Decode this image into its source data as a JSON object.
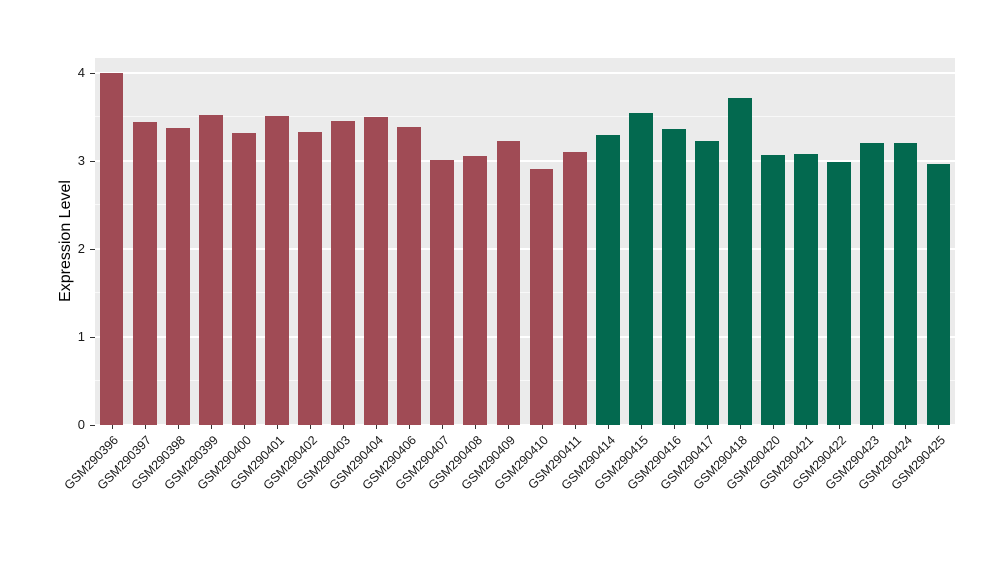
{
  "chart_data": {
    "type": "bar",
    "title": "",
    "xlabel": "",
    "ylabel": "Expression Level",
    "ylim": [
      0,
      4.17
    ],
    "yticks": [
      0,
      1,
      2,
      3,
      4
    ],
    "minor_ticks": [
      0.5,
      1.5,
      2.5,
      3.5
    ],
    "grid": true,
    "legend_position": "none",
    "plot_background": "#EBEBEB",
    "grid_color": "#FFFFFF",
    "categories": [
      "GSM290396",
      "GSM290397",
      "GSM290398",
      "GSM290399",
      "GSM290400",
      "GSM290401",
      "GSM290402",
      "GSM290403",
      "GSM290404",
      "GSM290406",
      "GSM290407",
      "GSM290408",
      "GSM290409",
      "GSM290410",
      "GSM290411",
      "GSM290414",
      "GSM290415",
      "GSM290416",
      "GSM290417",
      "GSM290418",
      "GSM290420",
      "GSM290421",
      "GSM290422",
      "GSM290423",
      "GSM290424",
      "GSM290425"
    ],
    "values": [
      4.0,
      3.44,
      3.37,
      3.52,
      3.32,
      3.51,
      3.33,
      3.46,
      3.5,
      3.39,
      3.01,
      3.06,
      3.23,
      2.91,
      3.1,
      3.3,
      3.54,
      3.36,
      3.23,
      3.72,
      3.07,
      3.08,
      2.99,
      3.21,
      3.21,
      2.97
    ],
    "groups": [
      0,
      0,
      0,
      0,
      0,
      0,
      0,
      0,
      0,
      0,
      0,
      0,
      0,
      0,
      0,
      1,
      1,
      1,
      1,
      1,
      1,
      1,
      1,
      1,
      1,
      1
    ],
    "group_colors": [
      "#A04B55",
      "#03694F"
    ]
  }
}
